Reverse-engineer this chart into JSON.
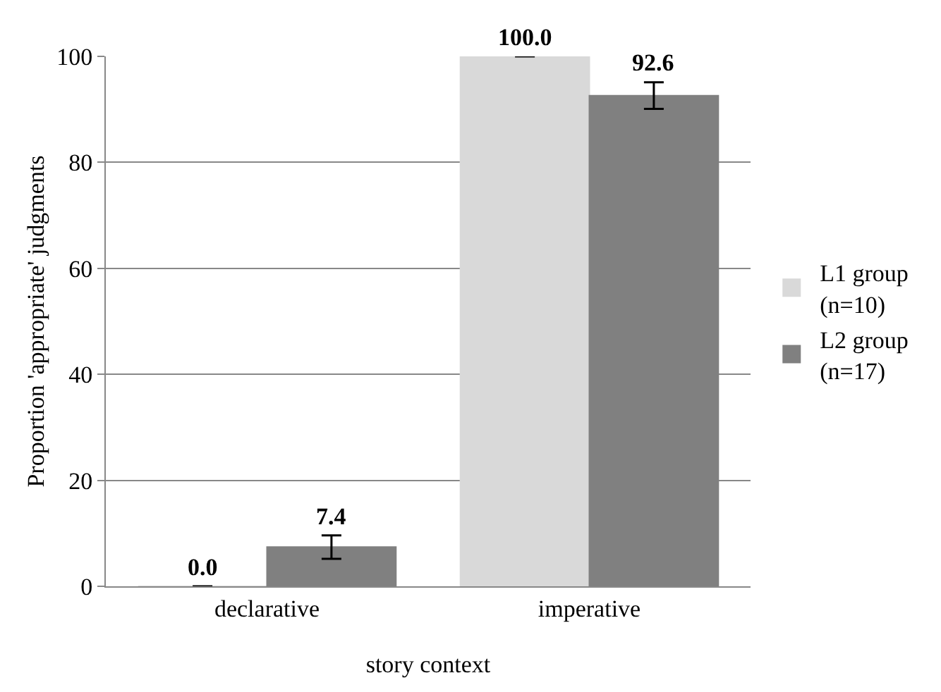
{
  "chart_data": {
    "type": "bar",
    "xlabel": "story context",
    "ylabel": "Proportion 'appropriate' judgments",
    "categories": [
      "declarative",
      "imperative"
    ],
    "series": [
      {
        "name": "L1 group (n=10)",
        "color": "#d9d9d9",
        "values": [
          0.0,
          100.0
        ],
        "value_labels": [
          "0.0",
          "100.0"
        ],
        "errors": [
          null,
          0
        ]
      },
      {
        "name": "L2 group (n=17)",
        "color": "#808080",
        "values": [
          7.4,
          92.6
        ],
        "value_labels": [
          "7.4",
          "92.6"
        ],
        "errors": [
          2.2,
          2.5
        ]
      }
    ],
    "ylim": [
      0,
      100
    ],
    "yticks": [
      0,
      20,
      40,
      60,
      80,
      100
    ],
    "grid": "y",
    "legend": "right"
  }
}
